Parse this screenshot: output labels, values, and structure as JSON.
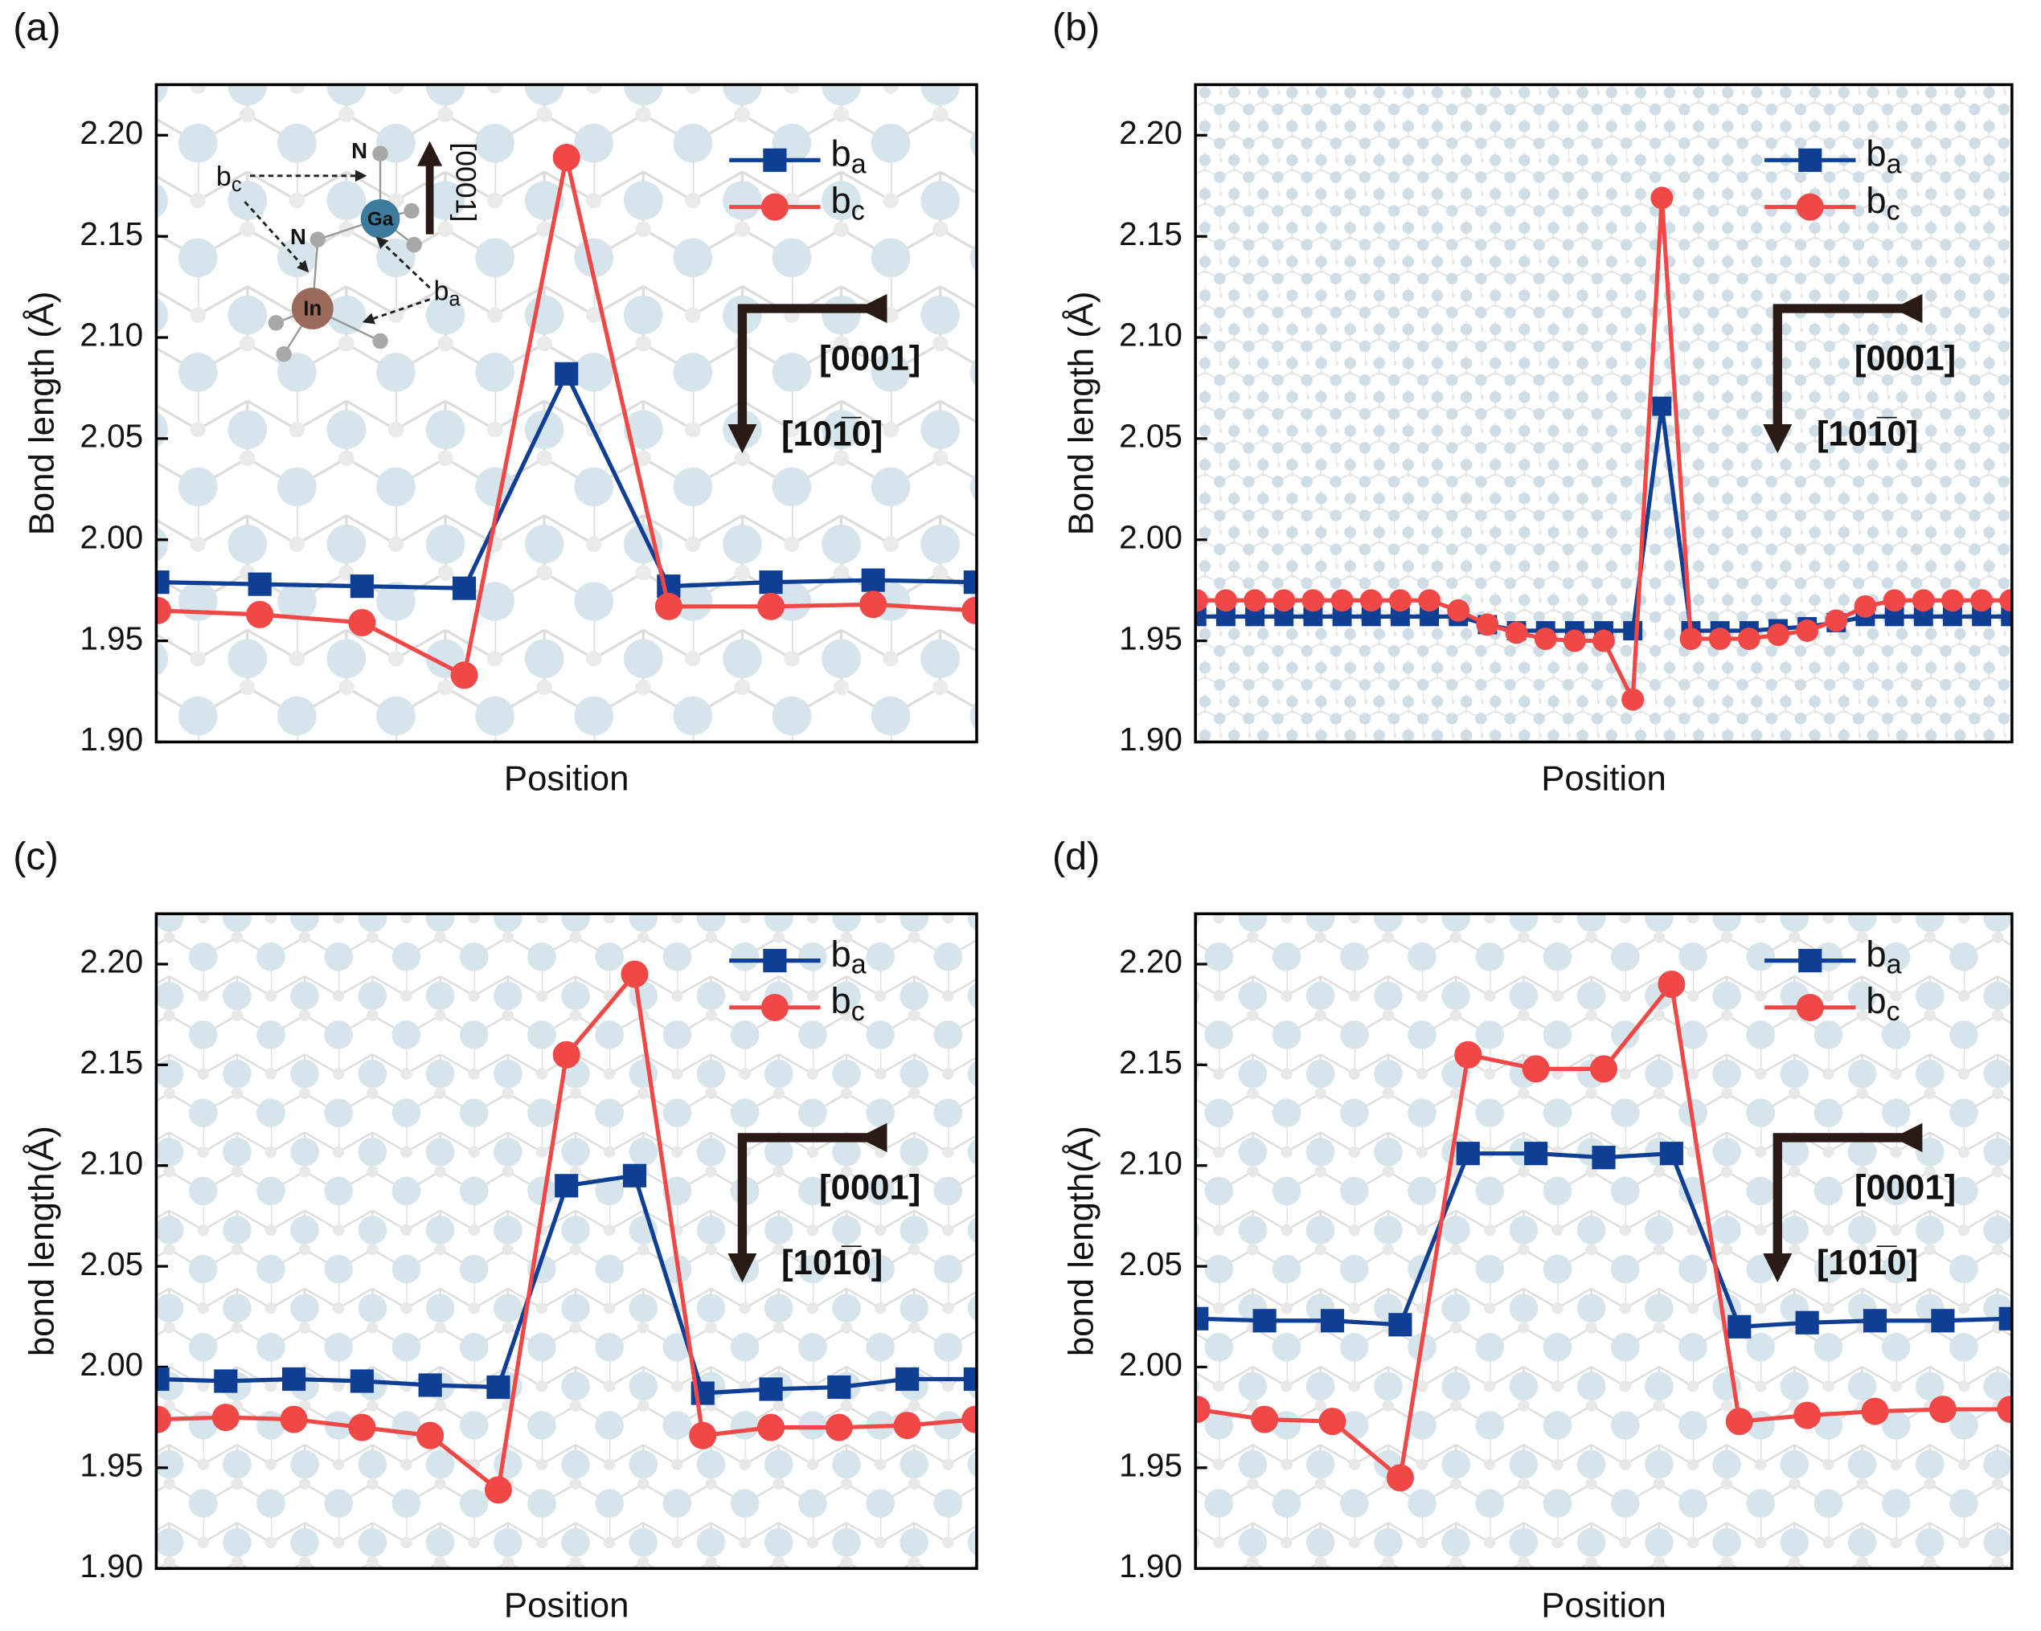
{
  "chart_data": [
    {
      "type": "line",
      "label": "(a)",
      "ylabel": "Bond length (Å)",
      "xlabel": "Position",
      "categories": [
        null,
        null,
        null,
        null,
        null,
        null,
        null,
        null,
        null
      ],
      "ylim": [
        1.9,
        2.225
      ],
      "yticks": [
        {
          "value": 1.9,
          "label": "1.90"
        },
        1.95,
        {
          "value": 2.0,
          "label": "2.00"
        },
        2.05,
        {
          "value": 2.1,
          "label": "2.10"
        },
        2.15,
        {
          "value": 2.2,
          "label": "2.20"
        }
      ],
      "legend": "upper right",
      "series": [
        {
          "name": "ba",
          "color": "#0e3f95",
          "marker": "square",
          "values": [
            1.979,
            1.978,
            1.977,
            1.976,
            2.082,
            1.977,
            1.979,
            1.98,
            1.979
          ]
        },
        {
          "name": "bc",
          "color": "#f04747",
          "marker": "circle",
          "values": [
            1.965,
            1.963,
            1.959,
            1.933,
            2.189,
            1.967,
            1.967,
            1.968,
            1.965
          ]
        }
      ],
      "directions": [
        "[0001]",
        "[101̅0]"
      ],
      "inset_labels": {
        "n1": "N",
        "ga": "Ga",
        "n2": "N",
        "in": "In",
        "bc": "bc",
        "ba": "ba",
        "axis": "[0001]"
      }
    },
    {
      "type": "line",
      "label": "(b)",
      "ylabel": "Bond length (Å)",
      "xlabel": "Position",
      "categories": [
        null,
        null,
        null,
        null,
        null,
        null,
        null,
        null,
        null,
        null,
        null,
        null,
        null,
        null,
        null,
        null,
        null,
        null,
        null,
        null,
        null,
        null,
        null,
        null,
        null,
        null,
        null,
        null,
        null
      ],
      "ylim": [
        1.9,
        2.225
      ],
      "yticks": [
        {
          "value": 1.9,
          "label": "1.90"
        },
        1.95,
        {
          "value": 2.0,
          "label": "2.00"
        },
        2.05,
        {
          "value": 2.1,
          "label": "2.10"
        },
        2.15,
        {
          "value": 2.2,
          "label": "2.20"
        }
      ],
      "legend": "upper right",
      "series": [
        {
          "name": "ba",
          "color": "#0e3f95",
          "marker": "square",
          "values": [
            1.962,
            1.962,
            1.962,
            1.962,
            1.962,
            1.962,
            1.962,
            1.962,
            1.962,
            1.962,
            1.958,
            1.955,
            1.955,
            1.955,
            1.955,
            1.955,
            2.066,
            1.955,
            1.955,
            1.955,
            1.956,
            1.957,
            1.959,
            1.962,
            1.962,
            1.962,
            1.962,
            1.962,
            1.962
          ]
        },
        {
          "name": "bc",
          "color": "#f04747",
          "marker": "circle",
          "values": [
            1.97,
            1.97,
            1.97,
            1.97,
            1.97,
            1.97,
            1.97,
            1.97,
            1.97,
            1.965,
            1.958,
            1.954,
            1.951,
            1.95,
            1.95,
            1.921,
            2.169,
            1.951,
            1.951,
            1.951,
            1.953,
            1.955,
            1.96,
            1.967,
            1.97,
            1.97,
            1.97,
            1.97,
            1.97
          ]
        }
      ],
      "directions": [
        "[0001]",
        "[101̅0]"
      ]
    },
    {
      "type": "line",
      "label": "(c)",
      "ylabel": "bond length(Å)",
      "xlabel": "Position",
      "categories": [
        null,
        null,
        null,
        null,
        null,
        null,
        null,
        null,
        null,
        null,
        null,
        null,
        null
      ],
      "ylim": [
        1.9,
        2.225
      ],
      "yticks": [
        {
          "value": 1.9,
          "label": "1.90"
        },
        1.95,
        {
          "value": 2.0,
          "label": "2.00"
        },
        2.05,
        {
          "value": 2.1,
          "label": "2.10"
        },
        2.15,
        {
          "value": 2.2,
          "label": "2.20"
        }
      ],
      "legend": "upper right",
      "series": [
        {
          "name": "ba",
          "color": "#0e3f95",
          "marker": "square",
          "values": [
            1.994,
            1.993,
            1.994,
            1.993,
            1.991,
            1.99,
            2.09,
            2.095,
            1.987,
            1.989,
            1.99,
            1.994,
            1.994
          ]
        },
        {
          "name": "bc",
          "color": "#f04747",
          "marker": "circle",
          "values": [
            1.974,
            1.975,
            1.974,
            1.97,
            1.966,
            1.939,
            2.155,
            2.195,
            1.966,
            1.97,
            1.97,
            1.971,
            1.974
          ]
        }
      ],
      "directions": [
        "[0001]",
        "[101̅0]"
      ]
    },
    {
      "type": "line",
      "label": "(d)",
      "ylabel": "bond length(Å)",
      "xlabel": "Position",
      "categories": [
        null,
        null,
        null,
        null,
        null,
        null,
        null,
        null,
        null,
        null,
        null,
        null,
        null
      ],
      "ylim": [
        1.9,
        2.225
      ],
      "yticks": [
        {
          "value": 1.9,
          "label": "1.90"
        },
        1.95,
        {
          "value": 2.0,
          "label": "2.00"
        },
        2.05,
        {
          "value": 2.1,
          "label": "2.10"
        },
        2.15,
        {
          "value": 2.2,
          "label": "2.20"
        }
      ],
      "legend": "upper right",
      "series": [
        {
          "name": "ba",
          "color": "#0e3f95",
          "marker": "square",
          "values": [
            2.024,
            2.023,
            2.023,
            2.021,
            2.106,
            2.106,
            2.104,
            2.106,
            2.02,
            2.022,
            2.023,
            2.023,
            2.024
          ]
        },
        {
          "name": "bc",
          "color": "#f04747",
          "marker": "circle",
          "values": [
            1.979,
            1.974,
            1.973,
            1.945,
            2.155,
            2.148,
            2.148,
            2.19,
            1.973,
            1.976,
            1.978,
            1.979,
            1.979
          ]
        }
      ],
      "directions": [
        "[0001]",
        "[101̅0]"
      ]
    }
  ]
}
